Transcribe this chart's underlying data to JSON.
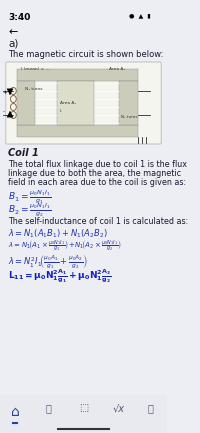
{
  "bg_color": "#eceef4",
  "status_bar": "3:40",
  "section_label": "a)",
  "intro_text": "The magnetic circuit is shown below:",
  "coil_title": "Coil 1",
  "coil_desc": "The total flux linkage due to coil 1 is the flux\nlinkage due to both the area, the magnetic\nfield in each area due to the coil is given as:",
  "equations_B": [
    "B₁ = μ₀N₁I₁ / g₁",
    "B₂ = μ₀N₁I₁ / g₂"
  ],
  "self_ind_text": "The self-inductance of coil 1 is calculated as:",
  "equations_lambda": [
    "λ = N₁(A₁B₁) + N₁(A₂B₂)",
    "λ = N₁(A₁ × μ₀N₁I₁/g₁) + N₁(A₂ × μ₀N₁I₁/g₂)",
    "λ = N₁²I₁(μ₀A₁/g₁ + μ₀A₂/g₂)"
  ],
  "final_eq": "L₁₁ = μ₀N₁² A₁/g₁ + μ₀N₁² A₂/g₂",
  "text_color": "#1a1a2e",
  "blue_color": "#2233aa",
  "bold_blue": "#1122bb"
}
